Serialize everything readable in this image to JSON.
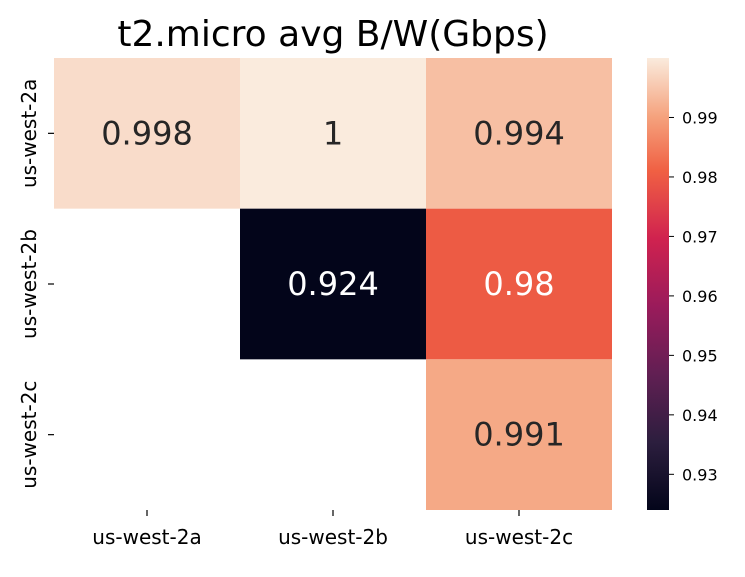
{
  "chart_data": {
    "type": "heatmap",
    "title": "t2.micro avg B/W(Gbps)",
    "x_categories": [
      "us-west-2a",
      "us-west-2b",
      "us-west-2c"
    ],
    "y_categories": [
      "us-west-2a",
      "us-west-2b",
      "us-west-2c"
    ],
    "cells": [
      {
        "row": 0,
        "col": 0,
        "value": 0.998,
        "label": "0.998"
      },
      {
        "row": 0,
        "col": 1,
        "value": 1.0,
        "label": "1"
      },
      {
        "row": 0,
        "col": 2,
        "value": 0.994,
        "label": "0.994"
      },
      {
        "row": 1,
        "col": 1,
        "value": 0.924,
        "label": "0.924"
      },
      {
        "row": 1,
        "col": 2,
        "value": 0.98,
        "label": "0.98"
      },
      {
        "row": 2,
        "col": 2,
        "value": 0.991,
        "label": "0.991"
      }
    ],
    "colorbar": {
      "range": [
        0.924,
        1.0
      ],
      "ticks": [
        0.93,
        0.94,
        0.95,
        0.96,
        0.97,
        0.98,
        0.99
      ],
      "tick_labels": [
        "0.93",
        "0.94",
        "0.95",
        "0.96",
        "0.97",
        "0.98",
        "0.99"
      ],
      "colormap": "rocket"
    }
  }
}
